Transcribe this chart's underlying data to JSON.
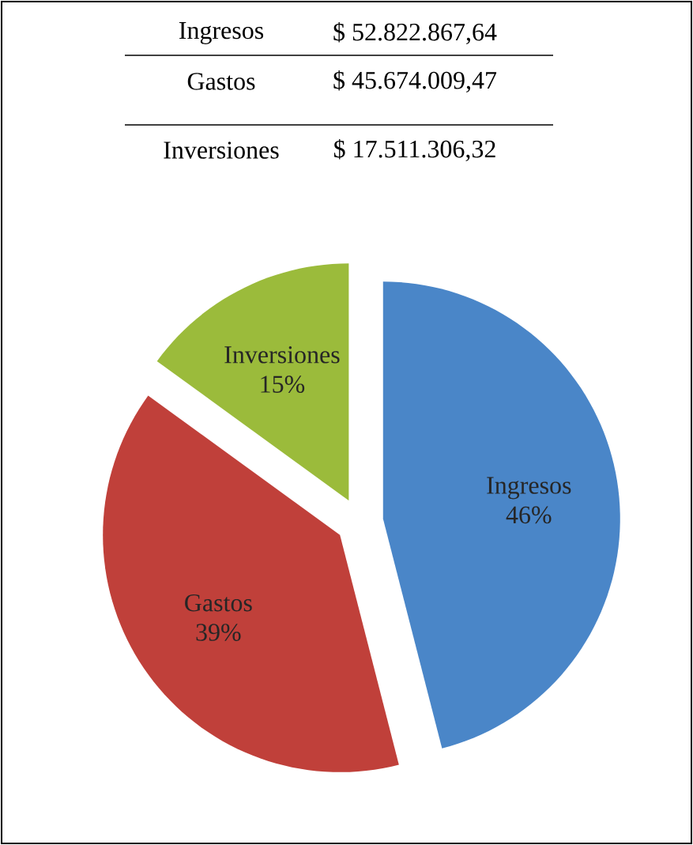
{
  "chart_data": {
    "type": "pie",
    "categories": [
      "Ingresos",
      "Gastos",
      "Inversiones"
    ],
    "values": [
      46,
      39,
      15
    ],
    "value_labels": [
      "46%",
      "39%",
      "15%"
    ],
    "colors": [
      "#4a86c8",
      "#c0403a",
      "#9bbb3b"
    ],
    "annotations": [
      "$ 52.822.867,64",
      "$ 45.674.009,47",
      "$ 17.511.306,32"
    ]
  }
}
